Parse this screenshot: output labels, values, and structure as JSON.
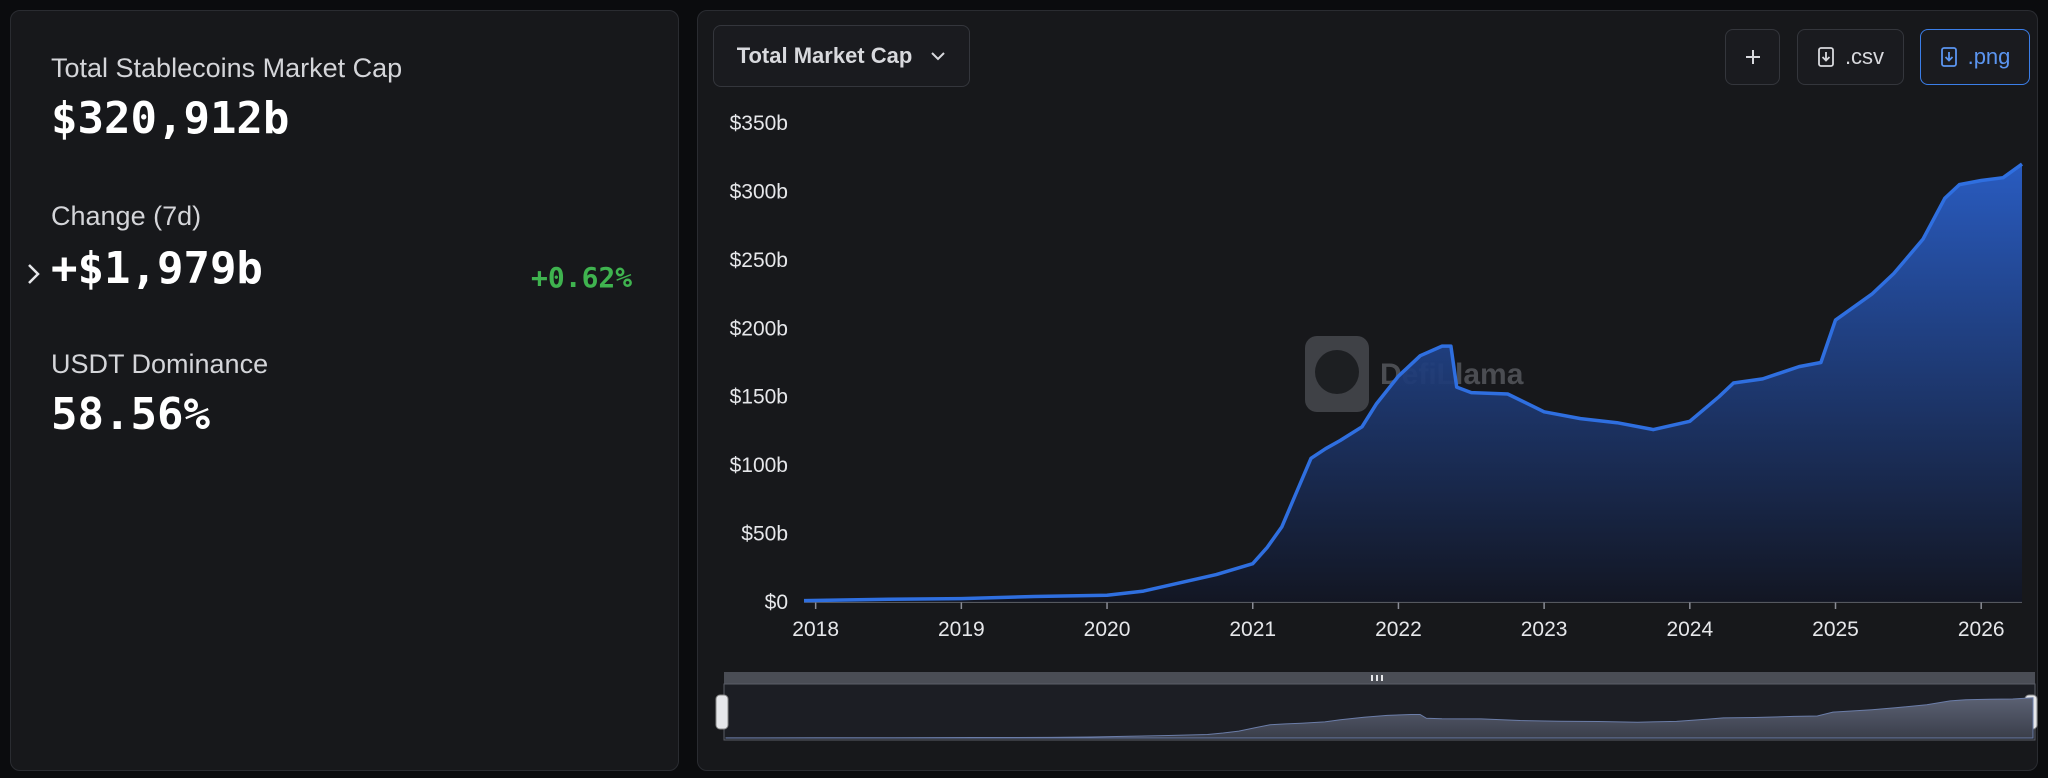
{
  "stats": {
    "total_label": "Total Stablecoins Market Cap",
    "total_value": "$320,912b",
    "change_label": "Change (7d)",
    "change_value": "+$1,979b",
    "change_pct": "+0.62%",
    "dominance_label": "USDT Dominance",
    "dominance_value": "58.56%"
  },
  "toolbar": {
    "dropdown": "Total Market Cap",
    "csv": ".csv",
    "png": ".png"
  },
  "chart_data": {
    "type": "area",
    "watermark": "DefiLlama",
    "color": "#2f6fe0",
    "x": [
      2017.92,
      2018.5,
      2019.0,
      2019.5,
      2020.0,
      2020.25,
      2020.5,
      2020.75,
      2021.0,
      2021.1,
      2021.2,
      2021.3,
      2021.4,
      2021.5,
      2021.6,
      2021.75,
      2021.85,
      2022.0,
      2022.15,
      2022.3,
      2022.36,
      2022.4,
      2022.5,
      2022.75,
      2023.0,
      2023.25,
      2023.5,
      2023.75,
      2024.0,
      2024.2,
      2024.3,
      2024.5,
      2024.75,
      2024.9,
      2025.0,
      2025.25,
      2025.4,
      2025.6,
      2025.75,
      2025.85,
      2026.0,
      2026.15,
      2026.28
    ],
    "values": [
      1,
      2,
      2.5,
      4,
      5,
      8,
      14,
      20,
      28,
      40,
      55,
      80,
      105,
      112,
      118,
      128,
      145,
      165,
      180,
      187,
      187,
      157,
      153,
      152,
      139,
      134,
      131,
      126,
      132,
      150,
      160,
      163,
      172,
      175,
      206,
      225,
      240,
      265,
      295,
      305,
      308,
      310,
      320
    ],
    "xlim": [
      2017.92,
      2026.28
    ],
    "xticks": [
      2018,
      2019,
      2020,
      2021,
      2022,
      2023,
      2024,
      2025,
      2026
    ],
    "ylim": [
      0,
      350
    ],
    "yticks": [
      {
        "value": 0,
        "label": "$0"
      },
      {
        "value": 50,
        "label": "$50b"
      },
      {
        "value": 100,
        "label": "$100b"
      },
      {
        "value": 150,
        "label": "$150b"
      },
      {
        "value": 200,
        "label": "$200b"
      },
      {
        "value": 250,
        "label": "$250b"
      },
      {
        "value": 300,
        "label": "$300b"
      },
      {
        "value": 350,
        "label": "$350b"
      }
    ]
  }
}
